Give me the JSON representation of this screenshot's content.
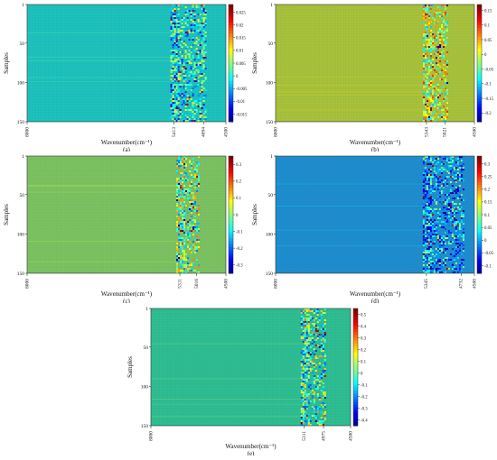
{
  "colormap": "jet",
  "chart_data": [
    {
      "type": "heatmap",
      "label": "(a)",
      "xlabel": "Wavenumber(cm⁻¹)",
      "ylabel": "Samples",
      "x_ticks": [
        "8000",
        "5413",
        "4894",
        "4500"
      ],
      "x_tick_values": [
        8000,
        5413,
        4894,
        4500
      ],
      "y_ticks": [
        "1",
        "50",
        "100",
        "150"
      ],
      "x_range": [
        8000,
        4500
      ],
      "y_range": [
        1,
        150
      ],
      "colorbar_ticks": [
        "0.025",
        "0.02",
        "0.015",
        "0.01",
        "0.005",
        "0",
        "-0.005",
        "-0.01",
        "-0.015"
      ],
      "colorbar_values": [
        0.025,
        0.02,
        0.015,
        0.01,
        0.005,
        0,
        -0.005,
        -0.01,
        -0.015
      ],
      "color_range": [
        -0.018,
        0.028
      ],
      "background_value": 0.0,
      "active_region": [
        5413,
        4894
      ],
      "background_color": "#1ec4bf"
    },
    {
      "type": "heatmap",
      "label": "(b)",
      "xlabel": "Wavenumber(cm⁻¹)",
      "ylabel": "Samples",
      "x_ticks": [
        "8000",
        "5343",
        "5021",
        "4500"
      ],
      "x_tick_values": [
        8000,
        5343,
        5021,
        4500
      ],
      "y_ticks": [
        "1",
        "50",
        "100",
        "150"
      ],
      "x_range": [
        8000,
        4500
      ],
      "y_range": [
        1,
        150
      ],
      "colorbar_ticks": [
        "0.15",
        "0.1",
        "0.05",
        "0",
        "-0.05",
        "-0.1",
        "-0.15",
        "-0.2"
      ],
      "colorbar_values": [
        0.15,
        0.1,
        0.05,
        0,
        -0.05,
        -0.1,
        -0.15,
        -0.2
      ],
      "color_range": [
        -0.23,
        0.17
      ],
      "background_value": 0.0,
      "active_region": [
        5343,
        5021
      ],
      "background_color": "#a9c43d"
    },
    {
      "type": "heatmap",
      "label": "(c)",
      "xlabel": "Wavenumber(cm⁻¹)",
      "ylabel": "Samples",
      "x_ticks": [
        "8000",
        "5311",
        "5016",
        "4500"
      ],
      "x_tick_values": [
        8000,
        5311,
        5016,
        4500
      ],
      "y_ticks": [
        "1",
        "50",
        "100",
        "150"
      ],
      "x_range": [
        8000,
        4500
      ],
      "y_range": [
        1,
        150
      ],
      "colorbar_ticks": [
        "0.3",
        "0.2",
        "0.1",
        "0",
        "-0.1",
        "-0.2",
        "-0.3"
      ],
      "colorbar_values": [
        0.3,
        0.2,
        0.1,
        0,
        -0.1,
        -0.2,
        -0.3
      ],
      "color_range": [
        -0.35,
        0.35
      ],
      "background_value": 0.0,
      "active_region": [
        5311,
        5016
      ],
      "background_color": "#7cc463"
    },
    {
      "type": "heatmap",
      "label": "(d)",
      "xlabel": "Wavenumber(cm⁻¹)",
      "ylabel": "Samples",
      "x_ticks": [
        "8000",
        "5345",
        "4732",
        "4500"
      ],
      "x_tick_values": [
        8000,
        5345,
        4732,
        4500
      ],
      "y_ticks": [
        "1",
        "50",
        "100",
        "150"
      ],
      "x_range": [
        8000,
        4500
      ],
      "y_range": [
        1,
        150
      ],
      "colorbar_ticks": [
        "0.3",
        "0.25",
        "0.2",
        "0.15",
        "0.1",
        "0.05",
        "0",
        "-0.05",
        "-0.1"
      ],
      "colorbar_values": [
        0.3,
        0.25,
        0.2,
        0.15,
        0.1,
        0.05,
        0,
        -0.05,
        -0.1
      ],
      "color_range": [
        -0.13,
        0.33
      ],
      "background_value": 0.0,
      "active_region": [
        5345,
        4732
      ],
      "background_color": "#1f8fd0"
    },
    {
      "type": "heatmap",
      "label": "(e)",
      "xlabel": "Wavenumber(cm⁻¹)",
      "ylabel": "Samples",
      "x_ticks": [
        "8000",
        "5311",
        "4975",
        "4500"
      ],
      "x_tick_values": [
        8000,
        5311,
        4975,
        4500
      ],
      "y_ticks": [
        "1",
        "50",
        "100",
        "150"
      ],
      "x_range": [
        8000,
        4500
      ],
      "y_range": [
        1,
        150
      ],
      "colorbar_ticks": [
        "0.5",
        "0.4",
        "0.3",
        "0.2",
        "0.1",
        "0",
        "-0.1",
        "-0.2",
        "-0.3",
        "-0.4"
      ],
      "colorbar_values": [
        0.5,
        0.4,
        0.3,
        0.2,
        0.1,
        0,
        -0.1,
        -0.2,
        -0.3,
        -0.4
      ],
      "color_range": [
        -0.45,
        0.55
      ],
      "background_value": 0.0,
      "active_region": [
        5311,
        4975
      ],
      "background_color": "#2fbf94"
    }
  ]
}
